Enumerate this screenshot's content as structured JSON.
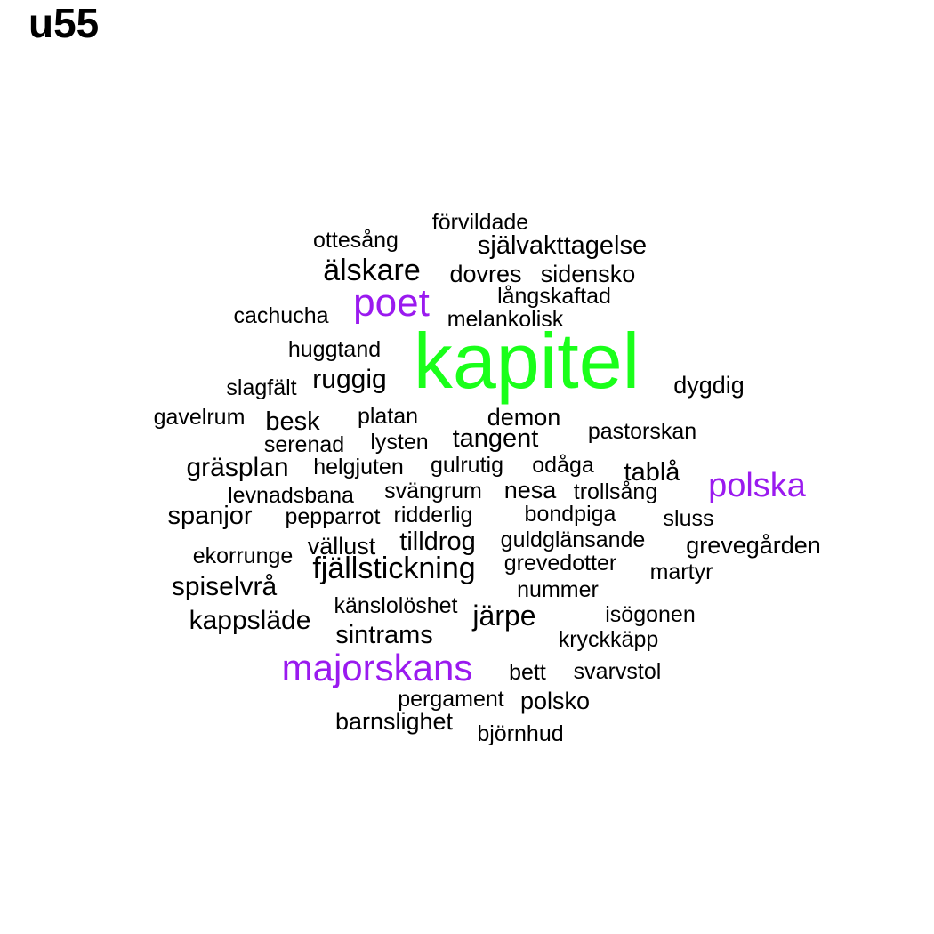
{
  "title": "u55",
  "chart_data": {
    "type": "wordcloud",
    "colors": {
      "high": "#1aff1a",
      "mid": "#9a1aef",
      "low": "#000000"
    },
    "words": [
      {
        "text": "kapitel",
        "tier": "high"
      },
      {
        "text": "poet",
        "tier": "mid"
      },
      {
        "text": "polska",
        "tier": "mid"
      },
      {
        "text": "majorskans",
        "tier": "mid"
      },
      {
        "text": "förvildade",
        "tier": "low"
      },
      {
        "text": "ottesång",
        "tier": "low"
      },
      {
        "text": "självakttagelse",
        "tier": "low"
      },
      {
        "text": "älskare",
        "tier": "low"
      },
      {
        "text": "dovres",
        "tier": "low"
      },
      {
        "text": "sidensko",
        "tier": "low"
      },
      {
        "text": "långskaftad",
        "tier": "low"
      },
      {
        "text": "cachucha",
        "tier": "low"
      },
      {
        "text": "melankolisk",
        "tier": "low"
      },
      {
        "text": "huggtand",
        "tier": "low"
      },
      {
        "text": "slagfält",
        "tier": "low"
      },
      {
        "text": "ruggig",
        "tier": "low"
      },
      {
        "text": "dygdig",
        "tier": "low"
      },
      {
        "text": "gavelrum",
        "tier": "low"
      },
      {
        "text": "besk",
        "tier": "low"
      },
      {
        "text": "platan",
        "tier": "low"
      },
      {
        "text": "demon",
        "tier": "low"
      },
      {
        "text": "pastorskan",
        "tier": "low"
      },
      {
        "text": "serenad",
        "tier": "low"
      },
      {
        "text": "lysten",
        "tier": "low"
      },
      {
        "text": "tangent",
        "tier": "low"
      },
      {
        "text": "gräsplan",
        "tier": "low"
      },
      {
        "text": "helgjuten",
        "tier": "low"
      },
      {
        "text": "gulrutig",
        "tier": "low"
      },
      {
        "text": "odåga",
        "tier": "low"
      },
      {
        "text": "tablå",
        "tier": "low"
      },
      {
        "text": "levnadsbana",
        "tier": "low"
      },
      {
        "text": "svängrum",
        "tier": "low"
      },
      {
        "text": "nesa",
        "tier": "low"
      },
      {
        "text": "trollsång",
        "tier": "low"
      },
      {
        "text": "spanjor",
        "tier": "low"
      },
      {
        "text": "pepparrot",
        "tier": "low"
      },
      {
        "text": "ridderlig",
        "tier": "low"
      },
      {
        "text": "bondpiga",
        "tier": "low"
      },
      {
        "text": "sluss",
        "tier": "low"
      },
      {
        "text": "ekorrunge",
        "tier": "low"
      },
      {
        "text": "vällust",
        "tier": "low"
      },
      {
        "text": "tilldrog",
        "tier": "low"
      },
      {
        "text": "guldglänsande",
        "tier": "low"
      },
      {
        "text": "grevegården",
        "tier": "low"
      },
      {
        "text": "fjällstickning",
        "tier": "low"
      },
      {
        "text": "grevedotter",
        "tier": "low"
      },
      {
        "text": "martyr",
        "tier": "low"
      },
      {
        "text": "spiselvrå",
        "tier": "low"
      },
      {
        "text": "nummer",
        "tier": "low"
      },
      {
        "text": "känslolöshet",
        "tier": "low"
      },
      {
        "text": "isögonen",
        "tier": "low"
      },
      {
        "text": "kappsläde",
        "tier": "low"
      },
      {
        "text": "järpe",
        "tier": "low"
      },
      {
        "text": "sintrams",
        "tier": "low"
      },
      {
        "text": "kryckkäpp",
        "tier": "low"
      },
      {
        "text": "bett",
        "tier": "low"
      },
      {
        "text": "svarvstol",
        "tier": "low"
      },
      {
        "text": "pergament",
        "tier": "low"
      },
      {
        "text": "polsko",
        "tier": "low"
      },
      {
        "text": "barnslighet",
        "tier": "low"
      },
      {
        "text": "björnhud",
        "tier": "low"
      }
    ]
  }
}
